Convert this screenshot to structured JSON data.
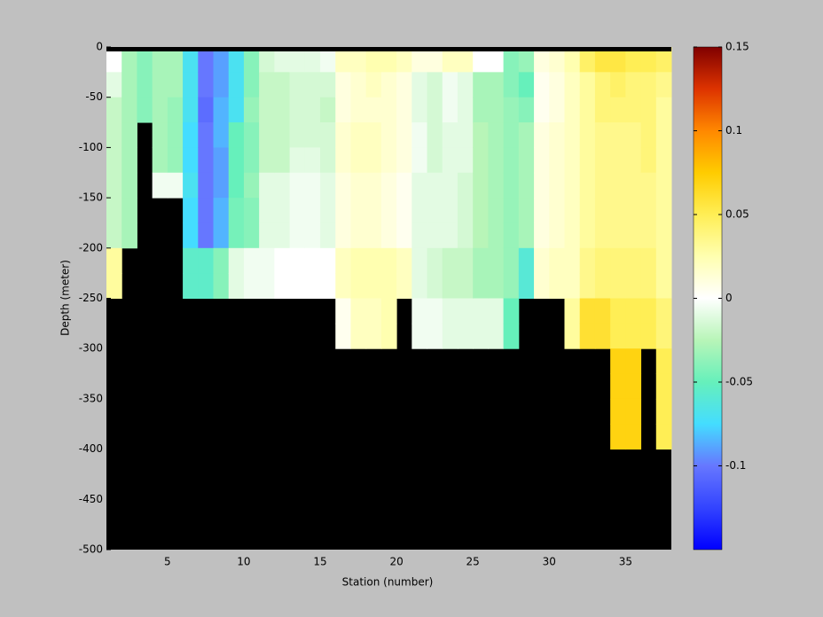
{
  "chart_data": {
    "type": "heatmap",
    "xlabel": "Station (number)",
    "ylabel": "Depth (meter)",
    "xlim": [
      1,
      38
    ],
    "ylim": [
      -500,
      0
    ],
    "xticks": [
      5,
      10,
      15,
      20,
      25,
      30,
      35
    ],
    "yticks": [
      -500,
      -450,
      -400,
      -350,
      -300,
      -250,
      -200,
      -150,
      -100,
      -50,
      0
    ],
    "clim": [
      -0.15,
      0.15
    ],
    "cticks": [
      -0.1,
      -0.05,
      0,
      0.05,
      0.1,
      0.15
    ],
    "colormap": [
      "#0000ff",
      "#3344ff",
      "#6677ff",
      "#44ddff",
      "#66f0bb",
      "#b8f5b8",
      "#ffffff",
      "#ffffb0",
      "#ffee55",
      "#ffcc00",
      "#ff8800",
      "#dd3300",
      "#800000"
    ],
    "background": "#000000",
    "x": [
      1,
      2,
      3,
      4,
      5,
      6,
      7,
      8,
      9,
      10,
      11,
      12,
      13,
      14,
      15,
      16,
      17,
      18,
      19,
      20,
      21,
      22,
      23,
      24,
      25,
      26,
      27,
      28,
      29,
      30,
      31,
      32,
      33,
      34,
      35,
      36,
      37,
      38
    ],
    "y": [
      0,
      -25,
      -50,
      -75,
      -100,
      -125,
      -150,
      -175,
      -200,
      -225,
      -250,
      -275,
      -300,
      -325,
      -350,
      -375,
      -400
    ],
    "values": [
      [
        0,
        -0.01,
        -0.02,
        -0.02,
        -0.02,
        -0.02,
        -0.02,
        -0.02,
        0.03,
        0.03,
        null,
        null,
        null,
        null,
        null,
        null
      ],
      [
        -0.03,
        -0.03,
        -0.03,
        -0.03,
        -0.03,
        -0.03,
        -0.03,
        -0.03,
        null,
        null,
        null,
        null,
        null,
        null,
        null,
        null
      ],
      [
        -0.04,
        -0.04,
        -0.04,
        null,
        null,
        null,
        null,
        null,
        null,
        null,
        null,
        null,
        null,
        null,
        null,
        null
      ],
      [
        -0.03,
        -0.03,
        -0.03,
        -0.03,
        -0.03,
        -0.005,
        null,
        null,
        null,
        null,
        null,
        null,
        null,
        null,
        null,
        null
      ],
      [
        -0.03,
        -0.03,
        -0.035,
        -0.035,
        -0.035,
        -0.005,
        null,
        null,
        null,
        null,
        null,
        null,
        null,
        null,
        null,
        null
      ],
      [
        -0.07,
        -0.07,
        -0.07,
        -0.075,
        -0.075,
        -0.07,
        -0.075,
        -0.075,
        -0.055,
        -0.055,
        null,
        null,
        null,
        null,
        null,
        null
      ],
      [
        -0.1,
        -0.1,
        -0.105,
        -0.1,
        -0.1,
        -0.1,
        -0.1,
        -0.1,
        -0.055,
        -0.055,
        null,
        null,
        null,
        null,
        null,
        null
      ],
      [
        -0.09,
        -0.09,
        -0.085,
        -0.085,
        -0.09,
        -0.09,
        -0.085,
        -0.085,
        -0.04,
        -0.04,
        null,
        null,
        null,
        null,
        null,
        null
      ],
      [
        -0.07,
        -0.07,
        -0.07,
        -0.05,
        -0.05,
        -0.05,
        -0.045,
        -0.045,
        -0.01,
        -0.01,
        null,
        null,
        null,
        null,
        null,
        null
      ],
      [
        -0.04,
        -0.04,
        -0.035,
        -0.04,
        -0.04,
        -0.035,
        -0.04,
        -0.04,
        -0.005,
        -0.005,
        null,
        null,
        null,
        null,
        null,
        null
      ],
      [
        -0.015,
        -0.02,
        -0.02,
        -0.02,
        -0.02,
        -0.01,
        -0.01,
        -0.01,
        -0.005,
        -0.005,
        null,
        null,
        null,
        null,
        null,
        null
      ],
      [
        -0.01,
        -0.02,
        -0.02,
        -0.02,
        -0.02,
        -0.01,
        -0.01,
        -0.01,
        0,
        0,
        null,
        null,
        null,
        null,
        null,
        null
      ],
      [
        -0.01,
        -0.015,
        -0.015,
        -0.015,
        -0.01,
        -0.005,
        -0.005,
        -0.005,
        0,
        0,
        null,
        null,
        null,
        null,
        null,
        null
      ],
      [
        -0.01,
        -0.015,
        -0.015,
        -0.015,
        -0.01,
        -0.005,
        -0.005,
        -0.005,
        0,
        0,
        null,
        null,
        null,
        null,
        null,
        null
      ],
      [
        -0.005,
        -0.015,
        -0.02,
        -0.015,
        -0.015,
        -0.01,
        -0.01,
        -0.01,
        0,
        0,
        null,
        null,
        null,
        null,
        null,
        null
      ],
      [
        0.02,
        0.01,
        0.01,
        0.015,
        0.015,
        0.01,
        0.01,
        0.01,
        0.02,
        0.02,
        0.005,
        0.005,
        null,
        null,
        null,
        null
      ],
      [
        0.02,
        0.015,
        0.015,
        0.02,
        0.02,
        0.015,
        0.015,
        0.015,
        0.025,
        0.025,
        0.02,
        0.02,
        null,
        null,
        null,
        null
      ],
      [
        0.025,
        0.02,
        0.015,
        0.02,
        0.02,
        0.015,
        0.015,
        0.015,
        0.025,
        0.025,
        0.02,
        0.02,
        null,
        null,
        null,
        null
      ],
      [
        0.025,
        0.015,
        0.015,
        0.015,
        0.015,
        0.01,
        0.01,
        0.01,
        0.025,
        0.025,
        0.025,
        0.025,
        null,
        null,
        null,
        null
      ],
      [
        0.02,
        0.01,
        0.01,
        0.01,
        0.01,
        0.005,
        0.005,
        0.005,
        0.02,
        0.02,
        null,
        null,
        null,
        null,
        null,
        null
      ],
      [
        0.01,
        -0.01,
        -0.01,
        -0.005,
        -0.005,
        -0.01,
        -0.01,
        -0.01,
        -0.01,
        -0.01,
        -0.005,
        -0.005,
        null,
        null,
        null,
        null
      ],
      [
        0.01,
        -0.015,
        -0.015,
        -0.015,
        -0.015,
        -0.01,
        -0.01,
        -0.01,
        -0.015,
        -0.015,
        -0.005,
        -0.005,
        null,
        null,
        null,
        null
      ],
      [
        0.02,
        -0.005,
        -0.005,
        -0.01,
        -0.01,
        -0.01,
        -0.01,
        -0.01,
        -0.02,
        -0.02,
        -0.01,
        -0.01,
        null,
        null,
        null,
        null
      ],
      [
        0.02,
        -0.01,
        -0.01,
        -0.01,
        -0.01,
        -0.015,
        -0.015,
        -0.015,
        -0.02,
        -0.02,
        -0.01,
        -0.01,
        null,
        null,
        null,
        null
      ],
      [
        0,
        -0.03,
        -0.03,
        -0.025,
        -0.025,
        -0.025,
        -0.025,
        -0.025,
        -0.03,
        -0.03,
        -0.01,
        -0.01,
        null,
        null,
        null,
        null
      ],
      [
        0,
        -0.03,
        -0.03,
        -0.03,
        -0.03,
        -0.03,
        -0.03,
        -0.03,
        -0.03,
        -0.03,
        -0.01,
        -0.01,
        null,
        null,
        null,
        null
      ],
      [
        -0.04,
        -0.04,
        -0.035,
        -0.035,
        -0.035,
        -0.035,
        -0.035,
        -0.035,
        -0.035,
        -0.035,
        -0.05,
        -0.05,
        null,
        null,
        null,
        null
      ],
      [
        -0.035,
        -0.05,
        -0.04,
        -0.03,
        -0.03,
        -0.03,
        -0.03,
        -0.03,
        -0.06,
        -0.06,
        null,
        null,
        null,
        null,
        null,
        null
      ],
      [
        0.01,
        0.005,
        0.005,
        0.01,
        0.01,
        0.01,
        0.01,
        0.01,
        0.015,
        0.015,
        null,
        null,
        null,
        null,
        null,
        null
      ],
      [
        0.015,
        0.01,
        0.01,
        0.015,
        0.015,
        0.015,
        0.015,
        0.015,
        0.02,
        0.02,
        null,
        null,
        null,
        null,
        null,
        null
      ],
      [
        0.025,
        0.02,
        0.02,
        0.02,
        0.02,
        0.02,
        0.02,
        0.02,
        0.02,
        0.02,
        0.03,
        0.03,
        null,
        null,
        null,
        null
      ],
      [
        0.045,
        0.03,
        0.03,
        0.03,
        0.03,
        0.03,
        0.03,
        0.03,
        0.035,
        0.035,
        0.06,
        0.06,
        null,
        null,
        null,
        null
      ],
      [
        0.055,
        0.04,
        0.04,
        0.035,
        0.035,
        0.035,
        0.035,
        0.035,
        0.04,
        0.04,
        0.06,
        0.06,
        null,
        null,
        null,
        null
      ],
      [
        0.055,
        0.045,
        0.04,
        0.035,
        0.035,
        0.035,
        0.035,
        0.035,
        0.04,
        0.04,
        0.05,
        0.05,
        0.07,
        0.07,
        0.07,
        0.07
      ],
      [
        0.05,
        0.04,
        0.04,
        0.035,
        0.035,
        0.035,
        0.035,
        0.035,
        0.04,
        0.04,
        0.05,
        0.05,
        0.07,
        0.07,
        0.07,
        0.07
      ],
      [
        0.05,
        0.04,
        0.04,
        0.04,
        0.04,
        0.035,
        0.035,
        0.035,
        0.04,
        0.04,
        0.05,
        0.05,
        null,
        null,
        null,
        null
      ],
      [
        0.045,
        0.035,
        0.03,
        0.03,
        0.03,
        0.03,
        0.03,
        0.03,
        0.03,
        0.03,
        0.04,
        0.04,
        0.05,
        0.05,
        0.05,
        0.05
      ]
    ]
  }
}
